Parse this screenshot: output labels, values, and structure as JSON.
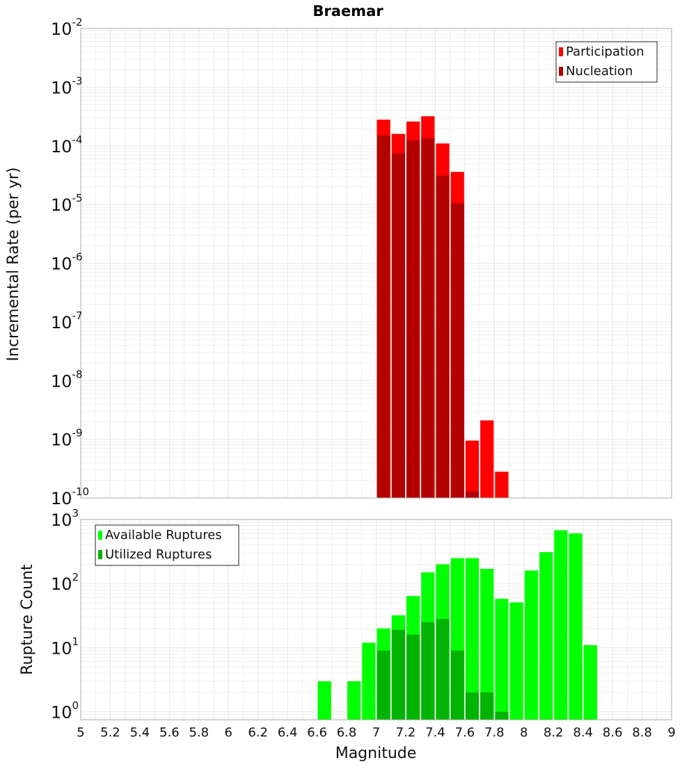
{
  "title": "Braemar",
  "xlabel": "Magnitude",
  "colors": {
    "participation": "#ff0000",
    "nucleation": "#b30000",
    "available": "#00ff00",
    "utilized": "#00b300",
    "grid": "#e6e6e6",
    "frame": "#aaaaaa"
  },
  "chart_data": [
    {
      "type": "bar",
      "ylabel": "Incremental Rate (per yr)",
      "yscale": "log",
      "ylim": [
        1e-10,
        0.01
      ],
      "xlim": [
        5,
        9
      ],
      "ytick_base": "10",
      "ytick_exponents": [
        "-10",
        "-9",
        "-8",
        "-7",
        "-6",
        "-5",
        "-4",
        "-3",
        "-2"
      ],
      "legend_position": "top-right",
      "bin_width": 0.1,
      "series": [
        {
          "name": "Participation",
          "x": [
            7.05,
            7.15,
            7.25,
            7.35,
            7.45,
            7.55,
            7.65,
            7.75,
            7.85
          ],
          "values": [
            0.00028,
            0.00016,
            0.00026,
            0.00032,
            0.00011,
            3.6e-05,
            9.5e-10,
            2.1e-09,
            2.8e-10
          ]
        },
        {
          "name": "Nucleation",
          "x": [
            7.05,
            7.15,
            7.25,
            7.35,
            7.45,
            7.55,
            7.65
          ],
          "values": [
            0.00015,
            7.5e-05,
            0.000125,
            0.000135,
            3.1e-05,
            1.05e-05,
            1.3e-10
          ]
        }
      ]
    },
    {
      "type": "bar",
      "ylabel": "Rupture Count",
      "yscale": "log",
      "ylim": [
        0.75,
        1000
      ],
      "xlim": [
        5,
        9
      ],
      "ytick_base": "10",
      "ytick_exponents": [
        "0",
        "1",
        "2",
        "3"
      ],
      "legend_position": "top-left",
      "bin_width": 0.1,
      "series": [
        {
          "name": "Available Ruptures",
          "x": [
            6.65,
            6.85,
            6.95,
            7.05,
            7.15,
            7.25,
            7.35,
            7.45,
            7.55,
            7.65,
            7.75,
            7.85,
            7.95,
            8.05,
            8.15,
            8.25,
            8.35,
            8.45
          ],
          "values": [
            3,
            3,
            12,
            20,
            32,
            64,
            150,
            200,
            250,
            250,
            170,
            58,
            51,
            160,
            310,
            680,
            610,
            11
          ]
        },
        {
          "name": "Utilized Ruptures",
          "x": [
            7.05,
            7.15,
            7.25,
            7.35,
            7.45,
            7.55,
            7.65,
            7.75,
            7.85
          ],
          "values": [
            9,
            19,
            16,
            25,
            28,
            9,
            2,
            2,
            1
          ]
        }
      ]
    }
  ],
  "xticks": [
    "5",
    "5.2",
    "5.4",
    "5.6",
    "5.8",
    "6",
    "6.2",
    "6.4",
    "6.6",
    "6.8",
    "7",
    "7.2",
    "7.4",
    "7.6",
    "7.8",
    "8",
    "8.2",
    "8.4",
    "8.6",
    "8.8",
    "9"
  ]
}
